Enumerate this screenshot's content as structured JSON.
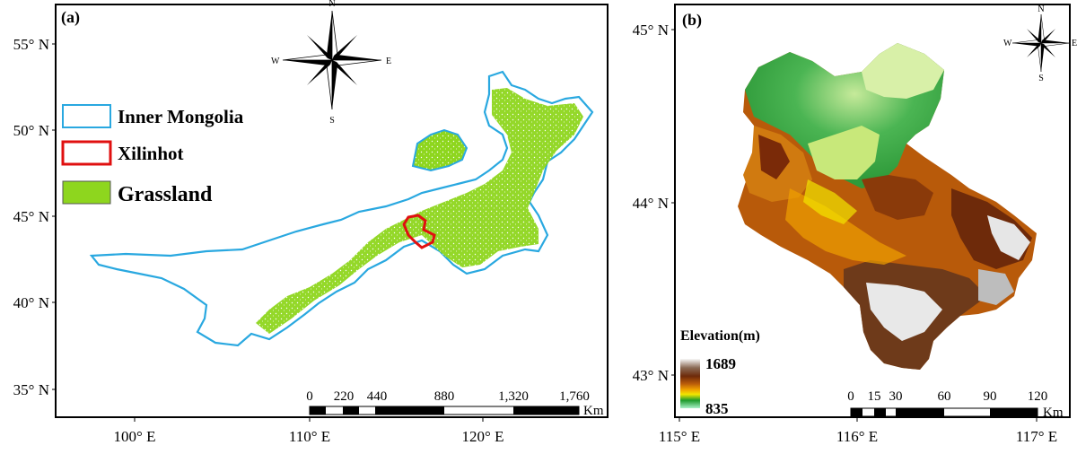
{
  "panel_a": {
    "label": "(a)",
    "lat_ticks": [
      "55° N",
      "50° N",
      "45° N",
      "40° N",
      "35° N"
    ],
    "lon_ticks": [
      "100° E",
      "110° E",
      "120° E"
    ],
    "legend": [
      {
        "label": "Inner Mongolia",
        "symbol": "outline",
        "color": "#29a8e0"
      },
      {
        "label": "Xilinhot",
        "symbol": "outline",
        "color": "#e01010"
      },
      {
        "label": "Grassland",
        "symbol": "fill",
        "color": "#8ed61e"
      }
    ],
    "scale_bar": {
      "ticks": [
        "0",
        "220",
        "440",
        "880",
        "1,320",
        "1,760"
      ],
      "unit": "Km"
    },
    "compass": {
      "n": "N",
      "s": "S",
      "e": "E",
      "w": "W"
    }
  },
  "panel_b": {
    "label": "(b)",
    "lat_ticks": [
      "45° N",
      "44° N",
      "43° N"
    ],
    "lon_ticks": [
      "115° E",
      "116° E",
      "117° E"
    ],
    "elevation_legend": {
      "title": "Elevation(m)",
      "max": "1689",
      "min": "835",
      "colors": [
        "#f7f7f7",
        "#8a6a55",
        "#6e2a0a",
        "#b85a0a",
        "#f0a000",
        "#f2e600",
        "#1e9a2c",
        "#a9f0c8"
      ]
    },
    "scale_bar": {
      "ticks": [
        "0",
        "15",
        "30",
        "60",
        "90",
        "120"
      ],
      "unit": "Km"
    },
    "compass": {
      "n": "N",
      "s": "S",
      "e": "E",
      "w": "W"
    }
  },
  "colors": {
    "boundary": "#29a8e0",
    "xilinhot": "#e01010",
    "grassland": "#8ed61e",
    "frame": "#000000"
  }
}
